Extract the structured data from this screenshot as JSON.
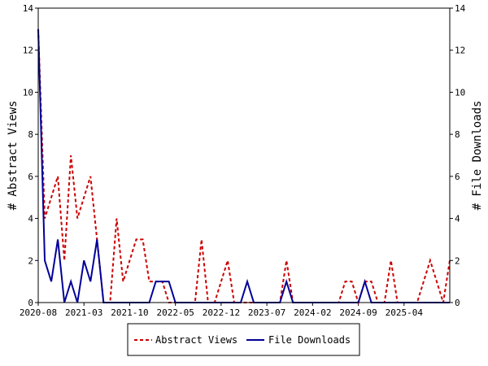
{
  "chart_data": {
    "type": "line",
    "x_tick_labels": [
      "2020-08",
      "2021-03",
      "2021-10",
      "2022-05",
      "2022-12",
      "2023-07",
      "2024-02",
      "2024-09",
      "2025-04"
    ],
    "ylabel_left": "# Abstract Views",
    "ylabel_right": "# File Downloads",
    "ylim": [
      0,
      14
    ],
    "y_ticks": [
      0,
      2,
      4,
      6,
      8,
      10,
      12,
      14
    ],
    "grid": false,
    "legend_position": "bottom",
    "series": [
      {
        "name": "Abstract Views",
        "color": "#cc0000",
        "dash": "dashed",
        "axis": "left",
        "values": [
          13,
          4,
          5,
          6,
          2,
          7,
          4,
          5,
          6,
          3,
          0,
          0,
          4,
          1,
          2,
          3,
          3,
          1,
          1,
          1,
          0,
          0,
          0,
          0,
          0,
          3,
          0,
          0,
          1,
          2,
          0,
          0,
          0,
          0,
          0,
          0,
          0,
          0,
          2,
          0,
          0,
          0,
          0,
          0,
          0,
          0,
          0,
          1,
          1,
          0,
          1,
          1,
          0,
          0,
          2,
          0,
          0,
          0,
          0,
          1,
          2,
          1,
          0,
          2
        ]
      },
      {
        "name": "File Downloads",
        "color": "#000099",
        "dash": "solid",
        "axis": "right",
        "values": [
          13,
          2,
          1,
          3,
          0,
          1,
          0,
          2,
          1,
          3,
          0,
          0,
          0,
          0,
          0,
          0,
          0,
          0,
          1,
          1,
          1,
          0,
          0,
          0,
          0,
          0,
          0,
          0,
          0,
          0,
          0,
          0,
          1,
          0,
          0,
          0,
          0,
          0,
          1,
          0,
          0,
          0,
          0,
          0,
          0,
          0,
          0,
          0,
          0,
          0,
          1,
          0,
          0,
          0,
          0,
          0,
          0,
          0,
          0,
          0,
          0,
          0,
          0,
          0
        ]
      }
    ]
  }
}
